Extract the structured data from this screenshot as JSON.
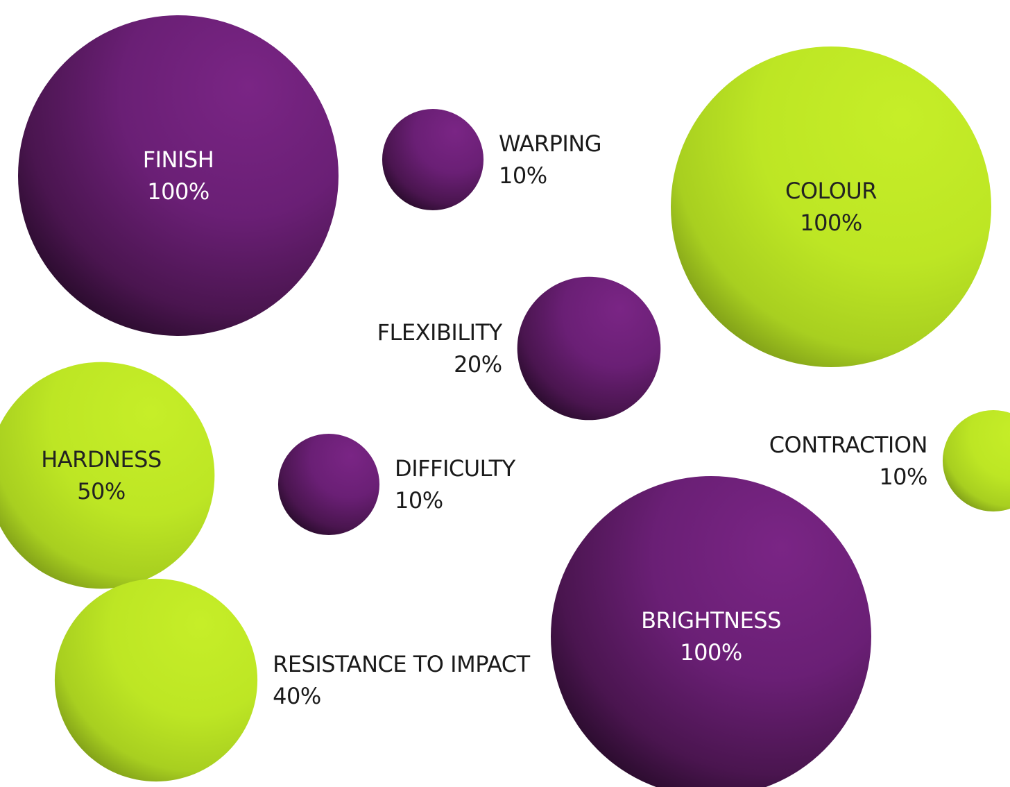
{
  "colors": {
    "purple": "#772482",
    "lime": "#c2eb26",
    "text_dark": "#1a1a1a",
    "text_light": "#ffffff",
    "text_on_lime": "#222222"
  },
  "chart_data": {
    "type": "bubble",
    "title": "",
    "value_unit": "%",
    "bubbles": [
      {
        "name": "FINISH",
        "value": 100,
        "value_label": "100%",
        "color": "purple",
        "label_position": "inside"
      },
      {
        "name": "WARPING",
        "value": 10,
        "value_label": "10%",
        "color": "purple",
        "label_position": "right"
      },
      {
        "name": "COLOUR",
        "value": 100,
        "value_label": "100%",
        "color": "lime",
        "label_position": "inside"
      },
      {
        "name": "FLEXIBILITY",
        "value": 20,
        "value_label": "20%",
        "color": "purple",
        "label_position": "left"
      },
      {
        "name": "HARDNESS",
        "value": 50,
        "value_label": "50%",
        "color": "lime",
        "label_position": "inside"
      },
      {
        "name": "DIFFICULTY",
        "value": 10,
        "value_label": "10%",
        "color": "purple",
        "label_position": "right"
      },
      {
        "name": "CONTRACTION",
        "value": 10,
        "value_label": "10%",
        "color": "lime",
        "label_position": "left"
      },
      {
        "name": "BRIGHTNESS",
        "value": 100,
        "value_label": "100%",
        "color": "purple",
        "label_position": "inside"
      },
      {
        "name": "RESISTANCE TO IMPACT",
        "value": 40,
        "value_label": "40%",
        "color": "lime",
        "label_position": "right"
      }
    ]
  }
}
